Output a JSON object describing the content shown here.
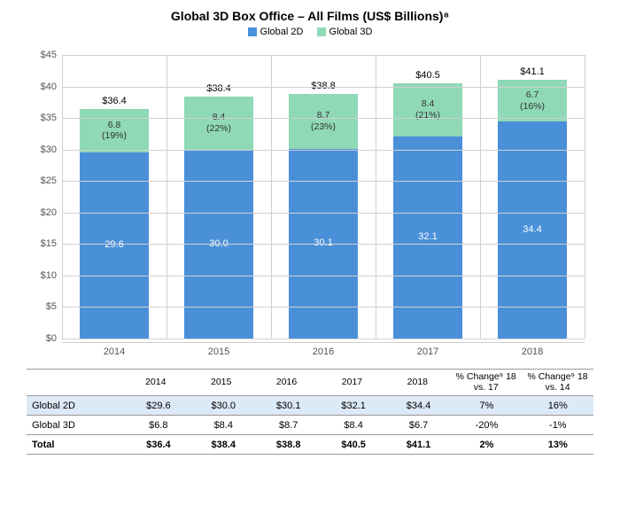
{
  "title": "Global 3D Box Office – All Films (US$ Billions)⁸",
  "legend": {
    "s2d": "Global 2D",
    "s3d": "Global 3D"
  },
  "colors": {
    "s2d": "#4a90d9",
    "s3d": "#8fd9b6",
    "grid": "#d0d0d0",
    "shade": "#dce9f6"
  },
  "chart": {
    "ymax": 45,
    "ytick": 5,
    "currency": "$",
    "ylabels": [
      "$0",
      "$5",
      "$10",
      "$15",
      "$20",
      "$25",
      "$30",
      "$35",
      "$40",
      "$45"
    ],
    "years": [
      "2014",
      "2015",
      "2016",
      "2017",
      "2018"
    ],
    "bars": [
      {
        "total": "$36.4",
        "v2d": 29.6,
        "l2d": "29.6",
        "v3d": 6.8,
        "l3d": "6.8",
        "pct": "(19%)"
      },
      {
        "total": "$38.4",
        "v2d": 30.0,
        "l2d": "30.0",
        "v3d": 8.4,
        "l3d": "8.4",
        "pct": "(22%)"
      },
      {
        "total": "$38.8",
        "v2d": 30.1,
        "l2d": "30.1",
        "v3d": 8.7,
        "l3d": "8.7",
        "pct": "(23%)"
      },
      {
        "total": "$40.5",
        "v2d": 32.1,
        "l2d": "32.1",
        "v3d": 8.4,
        "l3d": "8.4",
        "pct": "(21%)"
      },
      {
        "total": "$41.1",
        "v2d": 34.4,
        "l2d": "34.4",
        "v3d": 6.7,
        "l3d": "6.7",
        "pct": "(16%)"
      }
    ]
  },
  "table": {
    "headers": {
      "label": "",
      "c0": "2014",
      "c1": "2015",
      "c2": "2016",
      "c3": "2017",
      "c4": "2018",
      "c5": "% Change⁹ 18 vs. 17",
      "c6": "% Change⁹ 18 vs. 14"
    },
    "rows": [
      {
        "label": "Global 2D",
        "c0": "$29.6",
        "c1": "$30.0",
        "c2": "$30.1",
        "c3": "$32.1",
        "c4": "$34.4",
        "c5": "7%",
        "c6": "16%",
        "shaded": true
      },
      {
        "label": "Global 3D",
        "c0": "$6.8",
        "c1": "$8.4",
        "c2": "$8.7",
        "c3": "$8.4",
        "c4": "$6.7",
        "c5": "-20%",
        "c6": "-1%",
        "shaded": false
      },
      {
        "label": "Total",
        "c0": "$36.4",
        "c1": "$38.4",
        "c2": "$38.8",
        "c3": "$40.5",
        "c4": "$41.1",
        "c5": "2%",
        "c6": "13%",
        "shaded": false,
        "total": true
      }
    ]
  }
}
